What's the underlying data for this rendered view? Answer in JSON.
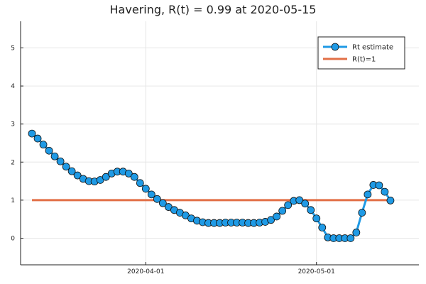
{
  "chart_data": {
    "type": "line",
    "title": "Havering, R(t) = 0.99 at 2020-05-15",
    "xlabel": "",
    "ylabel": "",
    "x_start": "2020-03-12",
    "x_range": [
      "2020-03-10",
      "2020-05-19"
    ],
    "ylim": [
      -0.7,
      5.7
    ],
    "y_ticks": [
      0,
      1,
      2,
      3,
      4,
      5
    ],
    "x_ticks": [
      {
        "date": "2020-04-01",
        "label": "2020-04-01"
      },
      {
        "date": "2020-05-01",
        "label": "2020-05-01"
      }
    ],
    "grid": true,
    "legend_position": "top-right",
    "series": [
      {
        "name": "Rt estimate",
        "color": "#1f9ae5",
        "marker": "circle",
        "values": [
          2.75,
          2.62,
          2.46,
          2.3,
          2.15,
          2.02,
          1.88,
          1.76,
          1.65,
          1.56,
          1.5,
          1.49,
          1.53,
          1.61,
          1.7,
          1.75,
          1.75,
          1.7,
          1.61,
          1.45,
          1.3,
          1.15,
          1.03,
          0.92,
          0.82,
          0.74,
          0.67,
          0.6,
          0.52,
          0.46,
          0.42,
          0.4,
          0.4,
          0.4,
          0.41,
          0.41,
          0.41,
          0.41,
          0.4,
          0.4,
          0.41,
          0.43,
          0.48,
          0.57,
          0.72,
          0.87,
          0.98,
          1.0,
          0.91,
          0.74,
          0.52,
          0.28,
          0.02,
          0.0,
          0.0,
          0.0,
          0.0,
          0.15,
          0.67,
          1.15,
          1.4,
          1.39,
          1.22,
          0.99
        ]
      },
      {
        "name": "R(t)=1",
        "color": "#e26f46",
        "marker": "none",
        "constant": 1
      }
    ]
  }
}
